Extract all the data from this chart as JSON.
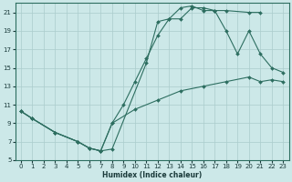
{
  "xlabel": "Humidex (Indice chaleur)",
  "bg_color": "#cce8e8",
  "grid_color": "#aacccc",
  "line_color": "#2d6e60",
  "xlim": [
    -0.5,
    23.5
  ],
  "ylim": [
    5,
    22
  ],
  "xticks": [
    0,
    1,
    2,
    3,
    4,
    5,
    6,
    7,
    8,
    9,
    10,
    11,
    12,
    13,
    14,
    15,
    16,
    17,
    18,
    19,
    20,
    21,
    22,
    23
  ],
  "yticks": [
    5,
    7,
    9,
    11,
    13,
    15,
    17,
    19,
    21
  ],
  "line1_x": [
    0,
    1,
    3,
    5,
    6,
    7,
    8,
    11,
    12,
    13,
    14,
    15,
    16,
    17,
    18,
    20,
    21
  ],
  "line1_y": [
    10.3,
    9.5,
    8.0,
    7.0,
    6.3,
    6.0,
    6.2,
    15.5,
    20.0,
    20.3,
    20.3,
    21.5,
    21.5,
    21.2,
    21.2,
    21.0,
    21.0
  ],
  "line2_x": [
    0,
    1,
    3,
    5,
    6,
    7,
    8,
    9,
    10,
    11,
    12,
    13,
    14,
    15,
    16,
    17,
    18,
    19,
    20,
    21,
    22,
    23
  ],
  "line2_y": [
    10.3,
    9.5,
    8.0,
    7.0,
    6.3,
    6.0,
    9.0,
    11.0,
    13.5,
    16.0,
    18.5,
    20.3,
    21.5,
    21.7,
    21.2,
    21.2,
    19.0,
    16.5,
    19.0,
    16.5,
    15.0,
    14.5
  ],
  "line3_x": [
    0,
    1,
    3,
    5,
    6,
    7,
    8,
    10,
    12,
    14,
    16,
    18,
    20,
    21,
    22,
    23
  ],
  "line3_y": [
    10.3,
    9.5,
    8.0,
    7.0,
    6.3,
    6.0,
    9.0,
    10.5,
    11.5,
    12.5,
    13.0,
    13.5,
    14.0,
    13.5,
    13.7,
    13.5
  ]
}
